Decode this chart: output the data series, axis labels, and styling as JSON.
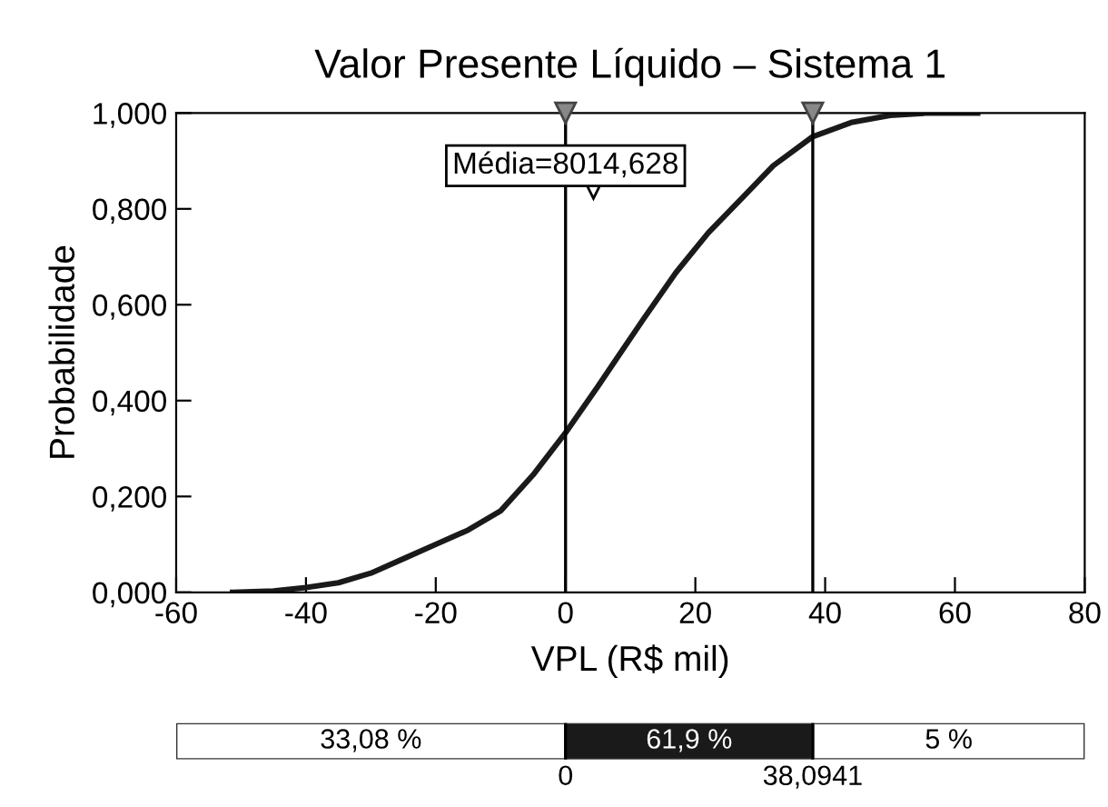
{
  "chart_data": {
    "type": "line",
    "title": "Valor Presente Líquido – Sistema 1",
    "xlabel": "VPL (R$ mil)",
    "ylabel": "Probabilidade",
    "x": [
      -51.3,
      -45,
      -40,
      -35,
      -30,
      -25,
      -20,
      -15,
      -10,
      -5,
      0,
      5,
      8,
      12,
      17,
      22,
      27,
      32,
      38,
      44,
      50,
      56,
      63.5
    ],
    "series": [
      {
        "color": "#1a1a1a",
        "values": [
          0,
          0.003,
          0.01,
          0.02,
          0.04,
          0.07,
          0.1,
          0.13,
          0.17,
          0.245,
          0.333,
          0.43,
          0.49,
          0.57,
          0.667,
          0.75,
          0.82,
          0.89,
          0.95,
          0.98,
          0.995,
          1.0,
          1.0
        ]
      }
    ],
    "xlim": [
      -60,
      80
    ],
    "xticks": [
      -60,
      -40,
      -20,
      0,
      20,
      40,
      60,
      80
    ],
    "ylim": [
      0,
      1
    ],
    "yticks": [
      {
        "value": 0,
        "label": "0,000"
      },
      {
        "value": 0.2,
        "label": "0,200"
      },
      {
        "value": 0.4,
        "label": "0,400"
      },
      {
        "value": 0.6,
        "label": "0,600"
      },
      {
        "value": 0.8,
        "label": "0,800"
      },
      {
        "value": 1,
        "label": "1,000"
      }
    ],
    "ref_lines": [
      {
        "axis": "x",
        "value": 0,
        "color": "#000000"
      },
      {
        "axis": "x",
        "value": 38.0941,
        "color": "#000000"
      }
    ],
    "annotations": [
      "Média=8014,628",
      "33,08 %",
      "61,9 %",
      "5 %",
      "0",
      "38,0941"
    ],
    "grid": false,
    "legend": false,
    "marker": "none",
    "line_style": "solid"
  }
}
